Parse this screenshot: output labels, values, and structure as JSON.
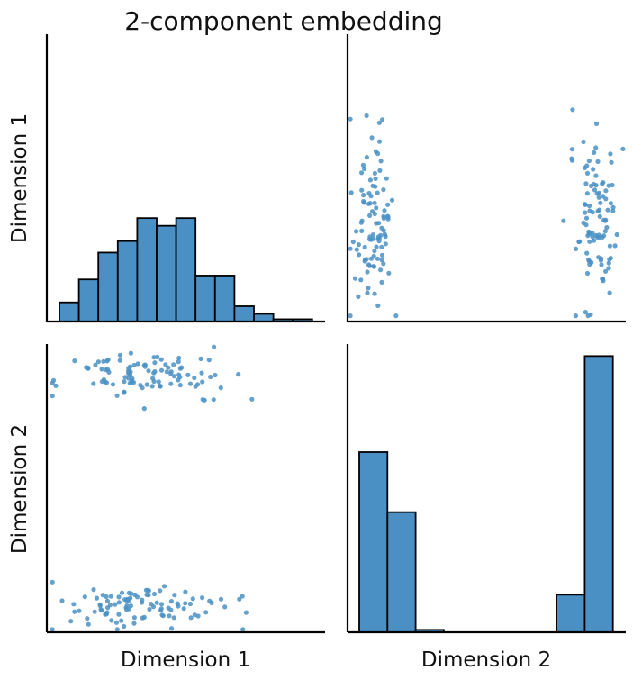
{
  "chart_data": {
    "type": "pairplot",
    "title": "2-component embedding",
    "variables": [
      "Dimension 1",
      "Dimension 2"
    ],
    "color": "#4a90c4",
    "edge_color": "#000000",
    "ticks_shown": false,
    "grid": false,
    "legend": "none",
    "diagonal": [
      {
        "variable": "Dimension 1",
        "type": "histogram",
        "counts": [
          5,
          11,
          18,
          21,
          27,
          25,
          27,
          12,
          12,
          4,
          2,
          0.6,
          0.6
        ],
        "ylim": [
          0,
          75
        ]
      },
      {
        "variable": "Dimension 2",
        "type": "histogram",
        "counts": [
          60,
          40,
          0.8,
          0,
          0,
          0,
          0,
          12.5,
          92
        ],
        "ylim": [
          0,
          96
        ]
      }
    ],
    "scatter": {
      "type": "scatter",
      "xlim": [
        0,
        100
      ],
      "ylim": [
        0,
        100
      ],
      "point_count_per_cluster": 100,
      "clusters": [
        {
          "dim1_center": 35,
          "dim1_sd": 15,
          "dim2_center": 9,
          "dim2_sd": 4
        },
        {
          "dim1_center": 35,
          "dim1_sd": 15,
          "dim2_center": 89,
          "dim2_sd": 4
        }
      ]
    }
  }
}
